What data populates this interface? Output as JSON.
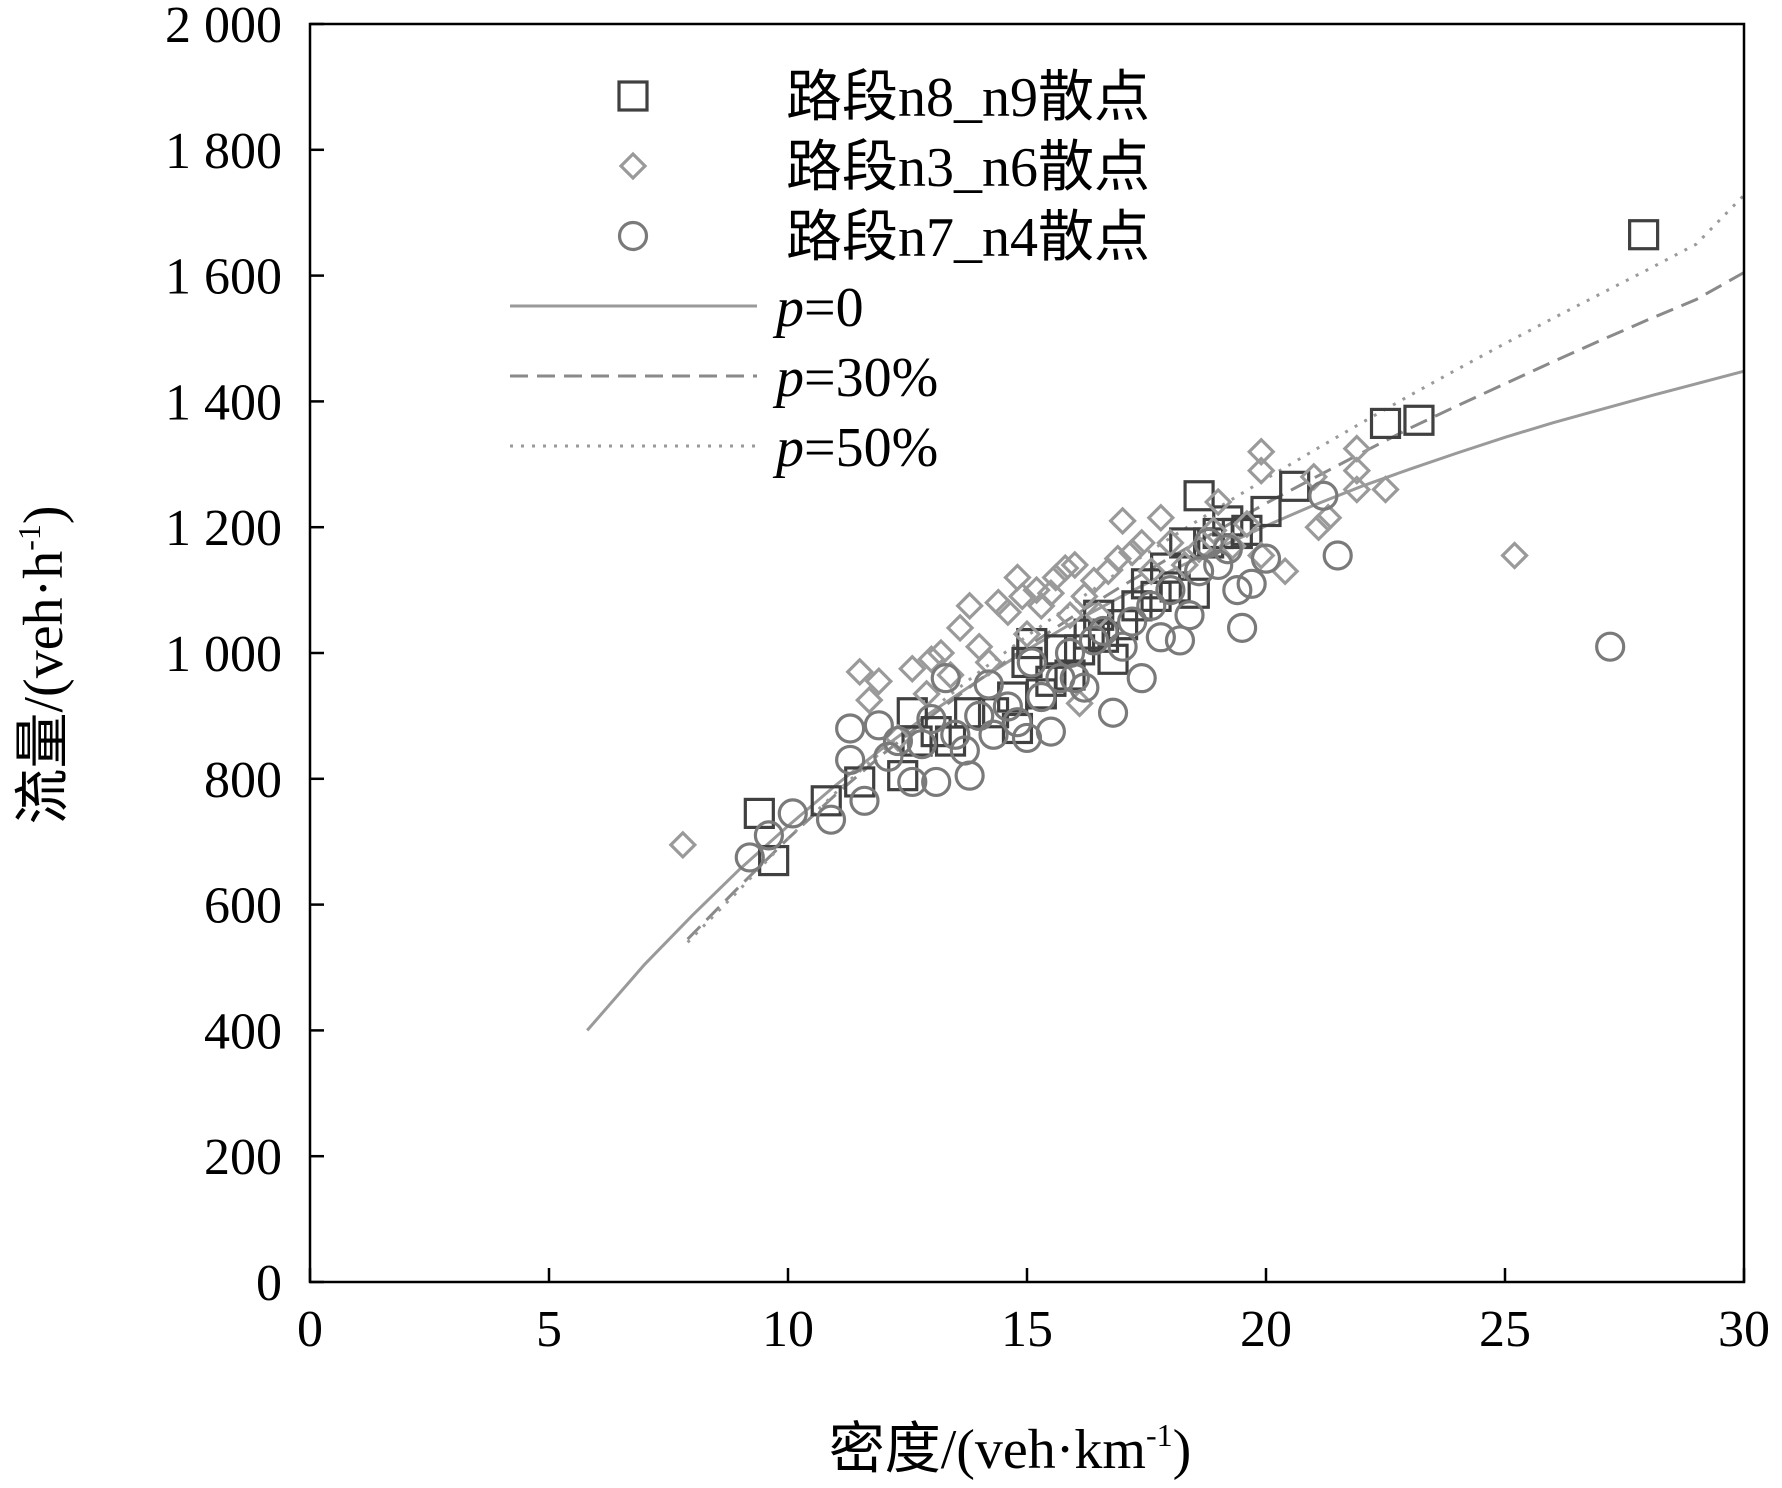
{
  "chart_data": {
    "type": "scatter",
    "xlabel": "密度/(veh·km",
    "xlabel_sup": "-1",
    "xlabel_end": ")",
    "ylabel": "流量/(veh·h",
    "ylabel_sup": "-1",
    "ylabel_end": ")",
    "xlim": [
      0,
      30
    ],
    "ylim": [
      0,
      2000
    ],
    "x_ticks": [
      0,
      5,
      10,
      15,
      20,
      25,
      30
    ],
    "x_tick_labels": [
      "0",
      "5",
      "10",
      "15",
      "20",
      "25",
      "30"
    ],
    "y_ticks": [
      0,
      200,
      400,
      600,
      800,
      1000,
      1200,
      1400,
      1600,
      1800,
      2000
    ],
    "y_tick_labels": [
      "0",
      "200",
      "400",
      "600",
      "800",
      "1 000",
      "1 200",
      "1 400",
      "1 600",
      "1 800",
      "2 000"
    ],
    "legend_position": "top-left",
    "series": [
      {
        "name": "路段n8_n9散点",
        "kind": "scatter",
        "marker": "square",
        "color": "#404040",
        "points": [
          [
            9.4,
            745
          ],
          [
            9.7,
            670
          ],
          [
            10.8,
            765
          ],
          [
            11.5,
            795
          ],
          [
            12.4,
            805
          ],
          [
            12.6,
            905
          ],
          [
            12.7,
            860
          ],
          [
            13.1,
            875
          ],
          [
            13.4,
            860
          ],
          [
            13.8,
            905
          ],
          [
            14.3,
            905
          ],
          [
            14.7,
            930
          ],
          [
            14.8,
            880
          ],
          [
            15.0,
            985
          ],
          [
            15.1,
            1015
          ],
          [
            15.3,
            935
          ],
          [
            15.5,
            955
          ],
          [
            15.7,
            1005
          ],
          [
            15.9,
            965
          ],
          [
            16.1,
            1005
          ],
          [
            16.3,
            1030
          ],
          [
            16.5,
            1060
          ],
          [
            16.6,
            1025
          ],
          [
            16.8,
            990
          ],
          [
            17.0,
            1045
          ],
          [
            17.3,
            1075
          ],
          [
            17.5,
            1110
          ],
          [
            17.7,
            1090
          ],
          [
            17.9,
            1135
          ],
          [
            18.1,
            1105
          ],
          [
            18.3,
            1175
          ],
          [
            18.5,
            1095
          ],
          [
            18.6,
            1250
          ],
          [
            18.8,
            1175
          ],
          [
            19.0,
            1190
          ],
          [
            19.2,
            1210
          ],
          [
            19.4,
            1190
          ],
          [
            19.6,
            1195
          ],
          [
            20.0,
            1225
          ],
          [
            20.6,
            1265
          ],
          [
            22.5,
            1365
          ],
          [
            23.2,
            1370
          ],
          [
            27.9,
            1665
          ]
        ]
      },
      {
        "name": "路段n3_n6散点",
        "kind": "scatter",
        "marker": "diamond",
        "color": "#9a9a9a",
        "points": [
          [
            7.8,
            695
          ],
          [
            11.5,
            970
          ],
          [
            11.7,
            925
          ],
          [
            11.9,
            955
          ],
          [
            12.3,
            865
          ],
          [
            12.6,
            975
          ],
          [
            12.9,
            935
          ],
          [
            13.0,
            990
          ],
          [
            13.2,
            1000
          ],
          [
            13.4,
            965
          ],
          [
            13.6,
            1040
          ],
          [
            13.8,
            1075
          ],
          [
            14.0,
            1010
          ],
          [
            14.2,
            985
          ],
          [
            14.4,
            1080
          ],
          [
            14.6,
            1065
          ],
          [
            14.8,
            1120
          ],
          [
            14.9,
            1090
          ],
          [
            15.0,
            1030
          ],
          [
            15.2,
            1100
          ],
          [
            15.3,
            1075
          ],
          [
            15.5,
            1095
          ],
          [
            15.6,
            1120
          ],
          [
            15.8,
            1135
          ],
          [
            15.9,
            1060
          ],
          [
            16.0,
            1140
          ],
          [
            16.1,
            920
          ],
          [
            16.2,
            1090
          ],
          [
            16.4,
            1115
          ],
          [
            16.5,
            1060
          ],
          [
            16.7,
            1130
          ],
          [
            16.9,
            1150
          ],
          [
            17.0,
            1210
          ],
          [
            17.2,
            1160
          ],
          [
            17.4,
            1175
          ],
          [
            17.6,
            1130
          ],
          [
            17.8,
            1215
          ],
          [
            18.0,
            1175
          ],
          [
            18.3,
            1140
          ],
          [
            18.6,
            1165
          ],
          [
            18.9,
            1195
          ],
          [
            19.0,
            1240
          ],
          [
            19.3,
            1170
          ],
          [
            19.6,
            1205
          ],
          [
            19.9,
            1155
          ],
          [
            19.9,
            1320
          ],
          [
            19.9,
            1290
          ],
          [
            20.4,
            1130
          ],
          [
            21.0,
            1280
          ],
          [
            21.1,
            1200
          ],
          [
            21.3,
            1215
          ],
          [
            21.9,
            1325
          ],
          [
            21.9,
            1290
          ],
          [
            21.9,
            1260
          ],
          [
            22.5,
            1260
          ],
          [
            25.2,
            1155
          ]
        ]
      },
      {
        "name": "路段n7_n4散点",
        "kind": "scatter",
        "marker": "circle",
        "color": "#7a7a7a",
        "points": [
          [
            9.2,
            675
          ],
          [
            9.6,
            710
          ],
          [
            10.1,
            745
          ],
          [
            10.9,
            735
          ],
          [
            11.3,
            880
          ],
          [
            11.3,
            830
          ],
          [
            11.6,
            765
          ],
          [
            11.9,
            885
          ],
          [
            12.1,
            835
          ],
          [
            12.3,
            860
          ],
          [
            12.6,
            795
          ],
          [
            12.8,
            855
          ],
          [
            13.0,
            895
          ],
          [
            13.1,
            795
          ],
          [
            13.3,
            960
          ],
          [
            13.5,
            870
          ],
          [
            13.7,
            845
          ],
          [
            13.8,
            805
          ],
          [
            14.0,
            900
          ],
          [
            14.2,
            950
          ],
          [
            14.3,
            870
          ],
          [
            14.6,
            915
          ],
          [
            14.8,
            890
          ],
          [
            15.0,
            865
          ],
          [
            15.1,
            985
          ],
          [
            15.3,
            930
          ],
          [
            15.5,
            875
          ],
          [
            15.7,
            960
          ],
          [
            15.9,
            1000
          ],
          [
            16.0,
            960
          ],
          [
            16.2,
            945
          ],
          [
            16.4,
            1020
          ],
          [
            16.6,
            1035
          ],
          [
            16.8,
            905
          ],
          [
            17.0,
            1010
          ],
          [
            17.2,
            1050
          ],
          [
            17.4,
            960
          ],
          [
            17.6,
            1075
          ],
          [
            17.8,
            1025
          ],
          [
            18.0,
            1100
          ],
          [
            18.2,
            1020
          ],
          [
            18.4,
            1060
          ],
          [
            18.6,
            1130
          ],
          [
            18.8,
            1175
          ],
          [
            19.0,
            1140
          ],
          [
            19.2,
            1165
          ],
          [
            19.4,
            1100
          ],
          [
            19.5,
            1040
          ],
          [
            19.7,
            1110
          ],
          [
            20.0,
            1150
          ],
          [
            21.2,
            1250
          ],
          [
            21.5,
            1155
          ],
          [
            27.2,
            1010
          ]
        ]
      },
      {
        "name": "p=0",
        "label_italic": "p",
        "label_rest": "=0",
        "kind": "line",
        "style": "solid",
        "color": "#9a9a9a",
        "x": [
          5.8,
          7,
          8,
          9,
          10,
          11,
          12,
          13,
          14,
          15,
          16,
          17,
          18,
          19,
          20,
          21,
          22,
          23,
          24,
          25,
          26,
          27,
          28,
          29,
          30
        ],
        "values": [
          400,
          505,
          583,
          657,
          725,
          790,
          850,
          906,
          957,
          1005,
          1050,
          1091,
          1130,
          1167,
          1202,
          1235,
          1265,
          1292,
          1318,
          1343,
          1366,
          1387,
          1408,
          1428,
          1448
        ]
      },
      {
        "name": "p=30%",
        "label_italic": "p",
        "label_rest": "=30%",
        "kind": "line",
        "style": "dashed",
        "color": "#8a8a8a",
        "x": [
          7.9,
          9,
          10,
          11,
          12,
          13,
          14,
          15,
          16,
          17,
          18,
          19,
          20,
          21,
          22,
          23,
          24,
          25,
          26,
          27,
          28,
          29,
          30
        ],
        "values": [
          545,
          630,
          705,
          775,
          840,
          900,
          957,
          1010,
          1060,
          1107,
          1152,
          1195,
          1238,
          1278,
          1318,
          1357,
          1393,
          1428,
          1463,
          1497,
          1530,
          1562,
          1605
        ]
      },
      {
        "name": "p=50%",
        "label_italic": "p",
        "label_rest": "=50%",
        "kind": "line",
        "style": "dotted",
        "color": "#9a9a9a",
        "x": [
          7.9,
          9,
          10,
          11,
          12,
          13,
          14,
          15,
          16,
          17,
          18,
          19,
          20,
          21,
          22,
          23,
          24,
          25,
          26,
          27,
          28,
          29,
          30
        ],
        "values": [
          540,
          625,
          705,
          778,
          846,
          910,
          970,
          1027,
          1081,
          1133,
          1183,
          1231,
          1277,
          1322,
          1366,
          1409,
          1451,
          1492,
          1532,
          1571,
          1610,
          1650,
          1728
        ]
      }
    ]
  }
}
